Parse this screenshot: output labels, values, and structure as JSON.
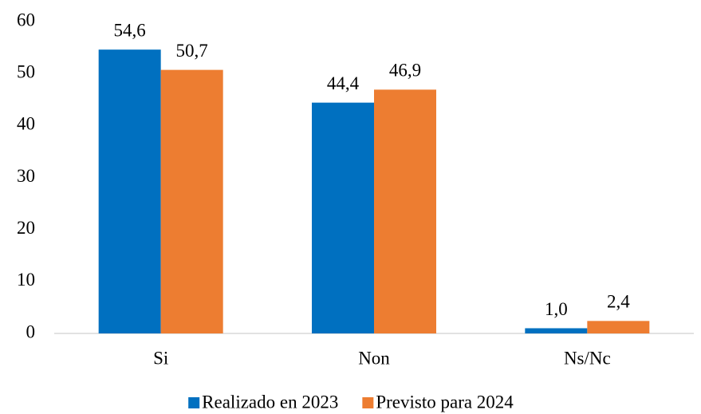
{
  "chart_data": {
    "type": "bar",
    "categories": [
      "Si",
      "Non",
      "Ns/Nc"
    ],
    "series": [
      {
        "name": "Realizado en 2023",
        "color": "#0070c0",
        "values": [
          54.6,
          44.4,
          1.0
        ],
        "value_labels": [
          "54,6",
          "44,4",
          "1,0"
        ]
      },
      {
        "name": "Previsto para 2024",
        "color": "#ed7d31",
        "values": [
          50.7,
          46.9,
          2.4
        ],
        "value_labels": [
          "50,7",
          "46,9",
          "2,4"
        ]
      }
    ],
    "ylim": [
      0,
      60
    ],
    "yticks": [
      0,
      10,
      20,
      30,
      40,
      50,
      60
    ],
    "grid": false,
    "legend": "bottom"
  }
}
